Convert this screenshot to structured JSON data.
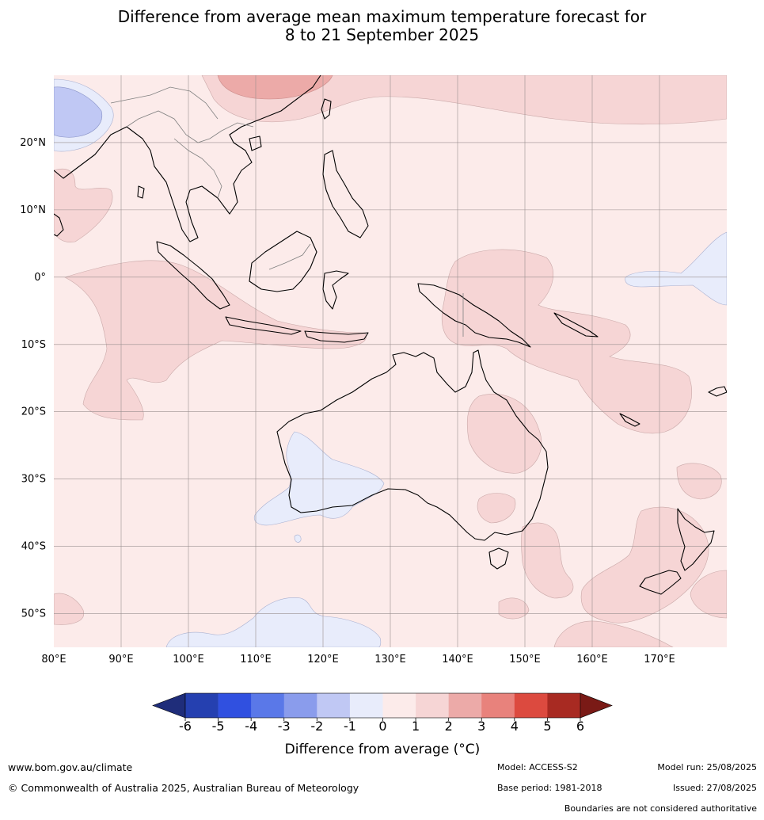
{
  "title_line1": "Difference from average mean maximum temperature forecast for",
  "title_line2": "8 to 21 September 2025",
  "lat_labels": [
    "20°N",
    "10°N",
    "0°",
    "10°S",
    "20°S",
    "30°S",
    "40°S",
    "50°S"
  ],
  "lon_labels": [
    "80°E",
    "90°E",
    "100°E",
    "110°E",
    "120°E",
    "130°E",
    "140°E",
    "150°E",
    "160°E",
    "170°E"
  ],
  "map_extent": {
    "lon_min": 80,
    "lon_max": 180,
    "lat_min": -55,
    "lat_max": 30
  },
  "colorbar": {
    "title": "Difference from average (°C)",
    "ticks": [
      "-6",
      "-5",
      "-4",
      "-3",
      "-2",
      "-1",
      "0",
      "1",
      "2",
      "3",
      "4",
      "5",
      "6"
    ],
    "colors": {
      "under": "#1f2d7a",
      "bins": [
        "#2540b0",
        "#3050e0",
        "#5a78e8",
        "#8a9cec",
        "#c0c8f4",
        "#e8ecfb",
        "#fcebea",
        "#f6d5d5",
        "#ecaaa8",
        "#e8827c",
        "#dc4a3f",
        "#a82a22"
      ],
      "over": "#7a1a16"
    }
  },
  "footer": {
    "website": "www.bom.gov.au/climate",
    "copyright": "© Commonwealth of Australia 2025, Australian Bureau of Meteorology",
    "model": "Model: ACCESS-S2",
    "model_run": "Model run: 25/08/2025",
    "base_period": "Base period: 1981-2018",
    "issued": "Issued: 27/08/2025",
    "boundaries_note": "Boundaries are not considered authoritative"
  }
}
